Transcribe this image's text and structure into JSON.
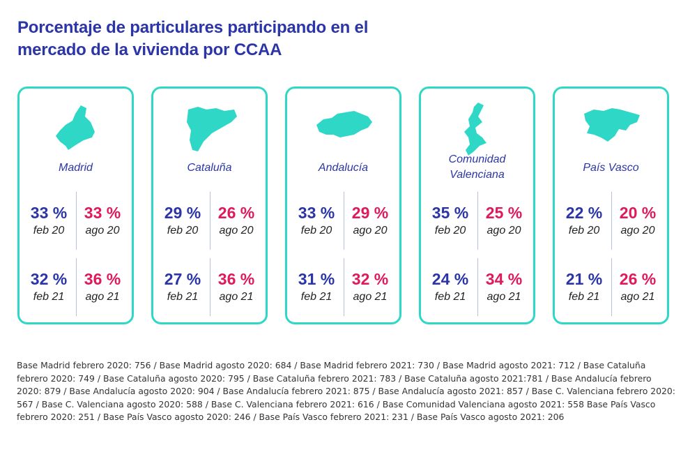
{
  "title": {
    "line1": "Porcentaje de particulares participando en el",
    "line2": "mercado de la vivienda por CCAA"
  },
  "colors": {
    "accent_teal": "#2fd8c6",
    "blue": "#2b35a8",
    "red": "#e0195a"
  },
  "chart_data": {
    "type": "table",
    "title": "Porcentaje de particulares participando en el mercado de la vivienda por CCAA",
    "unit": "%",
    "periods": [
      "feb 20",
      "ago 20",
      "feb 21",
      "ago 21"
    ],
    "regions": [
      {
        "name_lines": [
          "Madrid"
        ],
        "icon": "madrid-map-icon",
        "values": [
          {
            "value": "33 %",
            "label": "feb 20"
          },
          {
            "value": "33 %",
            "label": "ago 20"
          },
          {
            "value": "32 %",
            "label": "feb 21"
          },
          {
            "value": "36 %",
            "label": "ago 21"
          }
        ]
      },
      {
        "name_lines": [
          "Cataluña"
        ],
        "icon": "cataluna-map-icon",
        "values": [
          {
            "value": "29 %",
            "label": "feb 20"
          },
          {
            "value": "26 %",
            "label": "ago 20"
          },
          {
            "value": "27 %",
            "label": "feb 21"
          },
          {
            "value": "36 %",
            "label": "ago 21"
          }
        ]
      },
      {
        "name_lines": [
          "Andalucía"
        ],
        "icon": "andalucia-map-icon",
        "values": [
          {
            "value": "33 %",
            "label": "feb 20"
          },
          {
            "value": "29 %",
            "label": "ago 20"
          },
          {
            "value": "31 %",
            "label": "feb 21"
          },
          {
            "value": "32 %",
            "label": "ago 21"
          }
        ]
      },
      {
        "name_lines": [
          "Comunidad",
          "Valenciana"
        ],
        "icon": "valencia-map-icon",
        "values": [
          {
            "value": "35 %",
            "label": "feb 20"
          },
          {
            "value": "25 %",
            "label": "ago 20"
          },
          {
            "value": "24 %",
            "label": "feb 21"
          },
          {
            "value": "34 %",
            "label": "ago 21"
          }
        ]
      },
      {
        "name_lines": [
          "País Vasco"
        ],
        "icon": "pais-vasco-map-icon",
        "values": [
          {
            "value": "22 %",
            "label": "feb 20"
          },
          {
            "value": "20 %",
            "label": "ago 20"
          },
          {
            "value": "21 %",
            "label": "feb 21"
          },
          {
            "value": "26 %",
            "label": "ago 21"
          }
        ]
      }
    ]
  },
  "footnote": "Base Madrid febrero 2020: 756 / Base Madrid agosto 2020: 684 / Base Madrid febrero 2021: 730 / Base Madrid agosto 2021: 712 / Base Cataluña febrero 2020: 749 / Base Cataluña agosto 2020: 795 / Base Cataluña febrero 2021: 783 / Base Cataluña agosto 2021:781 / Base Andalucía febrero 2020: 879 / Base Andalucía agosto 2020: 904 / Base Andalucía febrero 2021: 875 / Base Andalucía agosto 2021: 857 / Base C. Valenciana febrero 2020: 567 / Base C. Valenciana agosto 2020: 588 / Base C. Valenciana febrero 2021: 616 / Base Comunidad Valenciana agosto 2021: 558 Base País Vasco febrero 2020: 251 / Base País Vasco agosto 2020: 246 / Base País Vasco febrero 2021: 231 / Base País Vasco agosto 2021: 206"
}
